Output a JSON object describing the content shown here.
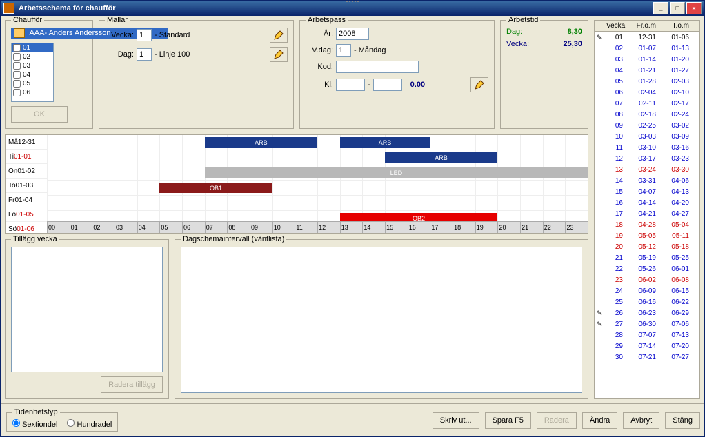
{
  "window": {
    "title": "Arbetsschema för chaufför"
  },
  "winbtns": {
    "min": "_",
    "max": "□",
    "close": "×"
  },
  "chauffor": {
    "legend": "Chaufför",
    "selected": "AAA- Anders Andersson",
    "checklist": [
      "01",
      "02",
      "03",
      "04",
      "05",
      "06"
    ],
    "ok": "OK"
  },
  "mallar": {
    "legend": "Mallar",
    "dag_label": "Dag:",
    "dag_val": "1",
    "dag_name": "- Linje 100",
    "vecka_label": "Vecka:",
    "vecka_val": "1",
    "vecka_name": "- Standard"
  },
  "arbetspass": {
    "legend": "Arbetspass",
    "ar_label": "År:",
    "ar_val": "2008",
    "vdag_label": "V.dag:",
    "vdag_val": "1",
    "vdag_name": "- Måndag",
    "kod_label": "Kod:",
    "kod_val": "",
    "kl_label": "Kl:",
    "kl_from": "",
    "kl_to": "",
    "kl_dur": "0.00"
  },
  "arbetstid": {
    "legend": "Arbetstid",
    "dag_label": "Dag:",
    "dag_val": "8,30",
    "vecka_label": "Vecka:",
    "vecka_val": "25,30"
  },
  "timeline": {
    "hours": [
      "00",
      "01",
      "02",
      "03",
      "04",
      "05",
      "06",
      "07",
      "08",
      "09",
      "10",
      "11",
      "12",
      "13",
      "14",
      "15",
      "16",
      "17",
      "18",
      "19",
      "20",
      "21",
      "22",
      "23"
    ],
    "rows": [
      {
        "label": "Må 12-31",
        "date_color": "#000000",
        "bars": [
          {
            "from": 7,
            "to": 12,
            "label": "ARB",
            "color": "#1a3a8a"
          },
          {
            "from": 13,
            "to": 17,
            "label": "ARB",
            "color": "#1a3a8a"
          }
        ]
      },
      {
        "label": "Ti 01-01",
        "date_color": "#cc0000",
        "bars": [
          {
            "from": 15,
            "to": 20,
            "label": "ARB",
            "color": "#1a3a8a"
          }
        ]
      },
      {
        "label": "On 01-02",
        "date_color": "#000000",
        "bars": [
          {
            "from": 7,
            "to": 24,
            "label": "LED",
            "color": "#b8b8b8"
          }
        ]
      },
      {
        "label": "To 01-03",
        "date_color": "#000000",
        "bars": [
          {
            "from": 5,
            "to": 10,
            "label": "OB1",
            "color": "#8b1a1a"
          }
        ]
      },
      {
        "label": "Fr 01-04",
        "date_color": "#000000",
        "bars": []
      },
      {
        "label": "Lö 01-05",
        "date_color": "#cc0000",
        "bars": [
          {
            "from": 13,
            "to": 20,
            "label": "OB2",
            "color": "#e60000"
          }
        ]
      },
      {
        "label": "Sö 01-06",
        "date_color": "#cc0000",
        "bars": []
      }
    ]
  },
  "tillagg": {
    "legend": "Tillägg vecka",
    "btn": "Radera tillägg"
  },
  "dagschema": {
    "legend": "Dagschemaintervall (väntlista)"
  },
  "weektable": {
    "headers": [
      "",
      "Vecka",
      "Fr.o.m",
      "T.o.m"
    ],
    "rows": [
      {
        "ic": "✎",
        "w": "01",
        "f": "12-31",
        "t": "01-06",
        "c": "#000000"
      },
      {
        "ic": "",
        "w": "02",
        "f": "01-07",
        "t": "01-13",
        "c": "#0000cc"
      },
      {
        "ic": "",
        "w": "03",
        "f": "01-14",
        "t": "01-20",
        "c": "#0000cc"
      },
      {
        "ic": "",
        "w": "04",
        "f": "01-21",
        "t": "01-27",
        "c": "#0000cc"
      },
      {
        "ic": "",
        "w": "05",
        "f": "01-28",
        "t": "02-03",
        "c": "#0000cc"
      },
      {
        "ic": "",
        "w": "06",
        "f": "02-04",
        "t": "02-10",
        "c": "#0000cc"
      },
      {
        "ic": "",
        "w": "07",
        "f": "02-11",
        "t": "02-17",
        "c": "#0000cc"
      },
      {
        "ic": "",
        "w": "08",
        "f": "02-18",
        "t": "02-24",
        "c": "#0000cc"
      },
      {
        "ic": "",
        "w": "09",
        "f": "02-25",
        "t": "03-02",
        "c": "#0000cc"
      },
      {
        "ic": "",
        "w": "10",
        "f": "03-03",
        "t": "03-09",
        "c": "#0000cc"
      },
      {
        "ic": "",
        "w": "11",
        "f": "03-10",
        "t": "03-16",
        "c": "#0000cc"
      },
      {
        "ic": "",
        "w": "12",
        "f": "03-17",
        "t": "03-23",
        "c": "#0000cc"
      },
      {
        "ic": "",
        "w": "13",
        "f": "03-24",
        "t": "03-30",
        "c": "#cc0000"
      },
      {
        "ic": "",
        "w": "14",
        "f": "03-31",
        "t": "04-06",
        "c": "#0000cc"
      },
      {
        "ic": "",
        "w": "15",
        "f": "04-07",
        "t": "04-13",
        "c": "#0000cc"
      },
      {
        "ic": "",
        "w": "16",
        "f": "04-14",
        "t": "04-20",
        "c": "#0000cc"
      },
      {
        "ic": "",
        "w": "17",
        "f": "04-21",
        "t": "04-27",
        "c": "#0000cc"
      },
      {
        "ic": "",
        "w": "18",
        "f": "04-28",
        "t": "05-04",
        "c": "#cc0000"
      },
      {
        "ic": "",
        "w": "19",
        "f": "05-05",
        "t": "05-11",
        "c": "#cc0000"
      },
      {
        "ic": "",
        "w": "20",
        "f": "05-12",
        "t": "05-18",
        "c": "#cc0000"
      },
      {
        "ic": "",
        "w": "21",
        "f": "05-19",
        "t": "05-25",
        "c": "#0000cc"
      },
      {
        "ic": "",
        "w": "22",
        "f": "05-26",
        "t": "06-01",
        "c": "#0000cc"
      },
      {
        "ic": "",
        "w": "23",
        "f": "06-02",
        "t": "06-08",
        "c": "#cc0000"
      },
      {
        "ic": "",
        "w": "24",
        "f": "06-09",
        "t": "06-15",
        "c": "#0000cc"
      },
      {
        "ic": "",
        "w": "25",
        "f": "06-16",
        "t": "06-22",
        "c": "#0000cc"
      },
      {
        "ic": "✎",
        "w": "26",
        "f": "06-23",
        "t": "06-29",
        "c": "#0000cc"
      },
      {
        "ic": "✎",
        "w": "27",
        "f": "06-30",
        "t": "07-06",
        "c": "#0000cc"
      },
      {
        "ic": "",
        "w": "28",
        "f": "07-07",
        "t": "07-13",
        "c": "#0000cc"
      },
      {
        "ic": "",
        "w": "29",
        "f": "07-14",
        "t": "07-20",
        "c": "#0000cc"
      },
      {
        "ic": "",
        "w": "30",
        "f": "07-21",
        "t": "07-27",
        "c": "#0000cc"
      }
    ]
  },
  "tidenhet": {
    "legend": "Tidenhetstyp",
    "opt1": "Sextiondel",
    "opt2": "Hundradel"
  },
  "footer": {
    "skriv": "Skriv ut...",
    "spara": "Spara F5",
    "radera": "Radera",
    "andra": "Ändra",
    "avbryt": "Avbryt",
    "stang": "Stäng"
  },
  "colors": {
    "accent": "#316ac5",
    "green": "#008000",
    "navy": "#000080"
  }
}
